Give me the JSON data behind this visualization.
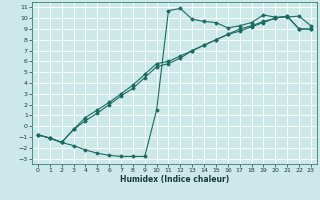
{
  "xlabel": "Humidex (Indice chaleur)",
  "xlim": [
    -0.5,
    23.5
  ],
  "ylim": [
    -3.5,
    11.5
  ],
  "xticks": [
    0,
    1,
    2,
    3,
    4,
    5,
    6,
    7,
    8,
    9,
    10,
    11,
    12,
    13,
    14,
    15,
    16,
    17,
    18,
    19,
    20,
    21,
    22,
    23
  ],
  "yticks": [
    -3,
    -2,
    -1,
    0,
    1,
    2,
    3,
    4,
    5,
    6,
    7,
    8,
    9,
    10,
    11
  ],
  "bg_color": "#cce8e8",
  "line_color": "#1a6b5e",
  "grid_color": "#ffffff",
  "curve1_x": [
    0,
    1,
    2,
    3,
    4,
    5,
    6,
    7,
    8,
    9,
    10,
    11,
    12,
    13,
    14,
    15,
    16,
    17,
    18,
    19,
    20,
    21,
    22,
    23
  ],
  "curve1_y": [
    -0.8,
    -1.1,
    -1.5,
    -1.8,
    -2.2,
    -2.5,
    -2.7,
    -2.8,
    -2.8,
    -2.8,
    1.5,
    10.7,
    10.9,
    9.9,
    9.7,
    9.6,
    9.1,
    9.3,
    9.6,
    10.3,
    10.1,
    10.1,
    10.2,
    9.3
  ],
  "curve2_x": [
    0,
    1,
    2,
    3,
    4,
    5,
    6,
    7,
    8,
    9,
    10,
    11,
    12,
    13,
    14,
    15,
    16,
    17,
    18,
    19,
    20,
    21,
    22,
    23
  ],
  "curve2_y": [
    -0.8,
    -1.1,
    -1.5,
    -0.3,
    0.8,
    1.5,
    2.2,
    3.0,
    3.8,
    4.8,
    5.8,
    6.0,
    6.5,
    7.0,
    7.5,
    8.0,
    8.5,
    8.8,
    9.2,
    9.6,
    10.0,
    10.2,
    9.0,
    9.0
  ],
  "curve3_x": [
    0,
    1,
    2,
    3,
    4,
    5,
    6,
    7,
    8,
    9,
    10,
    11,
    12,
    13,
    14,
    15,
    16,
    17,
    18,
    19,
    20,
    21,
    22,
    23
  ],
  "curve3_y": [
    -0.8,
    -1.1,
    -1.5,
    -0.3,
    0.5,
    1.2,
    2.0,
    2.8,
    3.5,
    4.5,
    5.5,
    5.8,
    6.3,
    7.0,
    7.5,
    8.0,
    8.5,
    9.0,
    9.3,
    9.7,
    10.0,
    10.2,
    9.0,
    9.0
  ]
}
